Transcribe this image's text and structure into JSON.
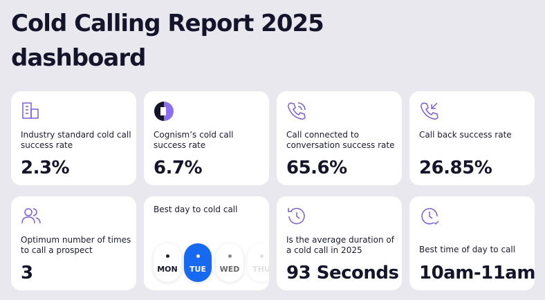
{
  "header": {
    "title_lines": [
      "Cold Calling Report 2025",
      "dashboard"
    ]
  },
  "cards": [
    {
      "label": "Industry standard cold call success rate",
      "value": "2.3%"
    },
    {
      "label": "Cognism’s cold call success rate",
      "value": "6.7%"
    },
    {
      "label": "Call connected to conversation success rate",
      "value": "65.6%"
    },
    {
      "label": "Call back success rate",
      "value": "26.85%"
    },
    {
      "label": "Optimum number of times to call a prospect",
      "value": "3"
    },
    {
      "label": "Best day to cold call",
      "days": [
        "MON",
        "TUE",
        "WED",
        "THU"
      ]
    },
    {
      "label": "Is the average duration of a cold call in 2025",
      "value": "93 Seconds"
    },
    {
      "label": "Best time of day to call",
      "value": "10am-11am"
    }
  ]
}
